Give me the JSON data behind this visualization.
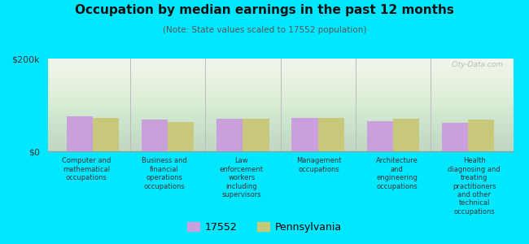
{
  "title": "Occupation by median earnings in the past 12 months",
  "subtitle": "(Note: State values scaled to 17552 population)",
  "categories": [
    "Computer and\nmathematical\noccupations",
    "Business and\nfinancial\noperations\noccupations",
    "Law\nenforcement\nworkers\nincluding\nsupervisors",
    "Management\noccupations",
    "Architecture\nand\nengineering\noccupations",
    "Health\ndiagnosing and\ntreating\npractitioners\nand other\ntechnical\noccupations"
  ],
  "values_17552": [
    75000,
    68000,
    70000,
    72000,
    65000,
    62000
  ],
  "values_pennsylvania": [
    72000,
    63000,
    70000,
    72000,
    70000,
    68000
  ],
  "color_17552": "#c9a0dc",
  "color_pennsylvania": "#c8c87a",
  "background_color": "#00e8ff",
  "ylim": [
    0,
    200000
  ],
  "yticks": [
    0,
    200000
  ],
  "ytick_labels": [
    "$0",
    "$200k"
  ],
  "legend_17552": "17552",
  "legend_pennsylvania": "Pennsylvania",
  "bar_width": 0.35,
  "watermark": "City-Data.com"
}
